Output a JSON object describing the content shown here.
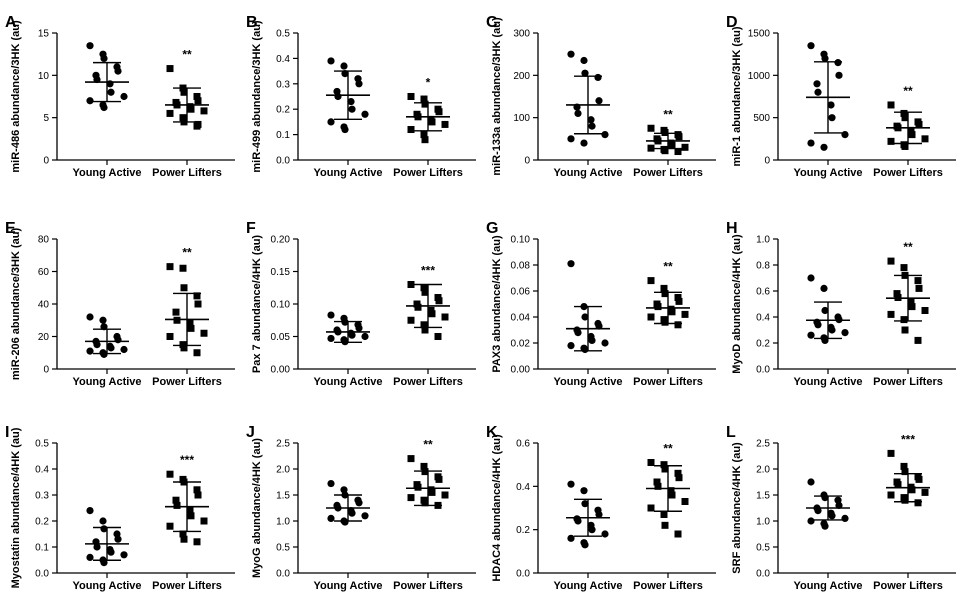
{
  "chart_data": [
    {
      "panel": "A",
      "type": "scatter",
      "ylabel": "miR-486 abundance/3HK (au)",
      "ylim": [
        0,
        15
      ],
      "yticks": [
        0,
        5,
        10,
        15
      ],
      "yticklabels": [
        "0",
        "5",
        "10",
        "15"
      ],
      "categories": [
        "Young Active",
        "Power Lifters"
      ],
      "series": [
        {
          "name": "Young Active",
          "marker": "circle",
          "values": [
            13.5,
            12.5,
            12,
            11,
            10.5,
            10,
            9.5,
            9,
            8,
            7.5,
            7,
            6.5,
            6.2
          ],
          "mean": 9.2,
          "sd": 2.3,
          "sig": ""
        },
        {
          "name": "Power Lifters",
          "marker": "square",
          "values": [
            10.8,
            8.5,
            8,
            7.5,
            7,
            6.8,
            6.5,
            6.3,
            6,
            5.8,
            5.5,
            5,
            4.5,
            4,
            4.2
          ],
          "mean": 6.5,
          "sd": 2.0,
          "sig": "**"
        }
      ]
    },
    {
      "panel": "B",
      "type": "scatter",
      "ylabel": "miR-499 abundance/3HK (au)",
      "ylim": [
        0,
        0.5
      ],
      "yticks": [
        0,
        0.1,
        0.2,
        0.3,
        0.4,
        0.5
      ],
      "yticklabels": [
        "0.0",
        "0.1",
        "0.2",
        "0.3",
        "0.4",
        "0.5"
      ],
      "categories": [
        "Young Active",
        "Power Lifters"
      ],
      "series": [
        {
          "name": "Young Active",
          "marker": "circle",
          "values": [
            0.39,
            0.37,
            0.34,
            0.32,
            0.3,
            0.27,
            0.25,
            0.23,
            0.2,
            0.18,
            0.15,
            0.13,
            0.12
          ],
          "mean": 0.255,
          "sd": 0.095,
          "sig": ""
        },
        {
          "name": "Power Lifters",
          "marker": "square",
          "values": [
            0.25,
            0.24,
            0.22,
            0.2,
            0.19,
            0.18,
            0.17,
            0.16,
            0.15,
            0.14,
            0.12,
            0.1,
            0.08
          ],
          "mean": 0.17,
          "sd": 0.055,
          "sig": "*"
        }
      ]
    },
    {
      "panel": "C",
      "type": "scatter",
      "ylabel": "miR-133a abundance/3HK (au)",
      "ylim": [
        0,
        300
      ],
      "yticks": [
        0,
        100,
        200,
        300
      ],
      "yticklabels": [
        "0",
        "100",
        "200",
        "300"
      ],
      "categories": [
        "Young Active",
        "Power Lifters"
      ],
      "series": [
        {
          "name": "Young Active",
          "marker": "circle",
          "values": [
            250,
            235,
            205,
            195,
            140,
            125,
            110,
            95,
            80,
            60,
            50,
            40
          ],
          "mean": 130,
          "sd": 68,
          "sig": ""
        },
        {
          "name": "Power Lifters",
          "marker": "square",
          "values": [
            75,
            70,
            65,
            60,
            55,
            50,
            45,
            40,
            35,
            30,
            28,
            25,
            22,
            20
          ],
          "mean": 45,
          "sd": 18,
          "sig": "**"
        }
      ]
    },
    {
      "panel": "D",
      "type": "scatter",
      "ylabel": "miR-1 abundance/3HK (au)",
      "ylim": [
        0,
        1500
      ],
      "yticks": [
        0,
        500,
        1000,
        1500
      ],
      "yticklabels": [
        "0",
        "500",
        "1000",
        "1500"
      ],
      "categories": [
        "Young Active",
        "Power Lifters"
      ],
      "series": [
        {
          "name": "Young Active",
          "marker": "circle",
          "values": [
            1350,
            1250,
            1200,
            1150,
            1000,
            900,
            800,
            650,
            500,
            300,
            200,
            150
          ],
          "mean": 740,
          "sd": 420,
          "sig": ""
        },
        {
          "name": "Power Lifters",
          "marker": "square",
          "values": [
            650,
            550,
            500,
            450,
            420,
            400,
            380,
            350,
            300,
            250,
            220,
            180,
            160
          ],
          "mean": 380,
          "sd": 185,
          "sig": "**"
        }
      ]
    },
    {
      "panel": "E",
      "type": "scatter",
      "ylabel": "miR-206 abundance/3HK (au)",
      "ylim": [
        0,
        80
      ],
      "yticks": [
        0,
        20,
        40,
        60,
        80
      ],
      "yticklabels": [
        "0",
        "20",
        "40",
        "60",
        "80"
      ],
      "categories": [
        "Young Active",
        "Power Lifters"
      ],
      "series": [
        {
          "name": "Young Active",
          "marker": "circle",
          "values": [
            32,
            30,
            26,
            20,
            18,
            17,
            15,
            14,
            13,
            12,
            11,
            10,
            9
          ],
          "mean": 17,
          "sd": 7.5,
          "sig": ""
        },
        {
          "name": "Power Lifters",
          "marker": "square",
          "values": [
            63,
            62,
            50,
            45,
            40,
            35,
            30,
            28,
            25,
            22,
            20,
            15,
            13,
            10
          ],
          "mean": 30.5,
          "sd": 16,
          "sig": "**"
        }
      ]
    },
    {
      "panel": "F",
      "type": "scatter",
      "ylabel": "Pax 7 abundance/4HK (au)",
      "ylim": [
        0,
        0.2
      ],
      "yticks": [
        0,
        0.05,
        0.1,
        0.15,
        0.2
      ],
      "yticklabels": [
        "0.00",
        "0.05",
        "0.10",
        "0.15",
        "0.20"
      ],
      "categories": [
        "Young Active",
        "Power Lifters"
      ],
      "series": [
        {
          "name": "Young Active",
          "marker": "circle",
          "values": [
            0.083,
            0.078,
            0.072,
            0.068,
            0.063,
            0.06,
            0.057,
            0.055,
            0.052,
            0.05,
            0.047,
            0.045,
            0.042
          ],
          "mean": 0.057,
          "sd": 0.016,
          "sig": ""
        },
        {
          "name": "Power Lifters",
          "marker": "square",
          "values": [
            0.13,
            0.125,
            0.118,
            0.11,
            0.105,
            0.1,
            0.095,
            0.09,
            0.085,
            0.08,
            0.075,
            0.068,
            0.06,
            0.05
          ],
          "mean": 0.097,
          "sd": 0.033,
          "sig": "***"
        }
      ]
    },
    {
      "panel": "G",
      "type": "scatter",
      "ylabel": "PAX3 abundance/4HK (au)",
      "ylim": [
        0,
        0.1
      ],
      "yticks": [
        0,
        0.02,
        0.04,
        0.06,
        0.08,
        0.1
      ],
      "yticklabels": [
        "0.00",
        "0.02",
        "0.04",
        "0.06",
        "0.08",
        "0.10"
      ],
      "categories": [
        "Young Active",
        "Power Lifters"
      ],
      "series": [
        {
          "name": "Young Active",
          "marker": "circle",
          "values": [
            0.081,
            0.048,
            0.04,
            0.035,
            0.033,
            0.03,
            0.028,
            0.025,
            0.022,
            0.02,
            0.018,
            0.016,
            0.015
          ],
          "mean": 0.031,
          "sd": 0.017,
          "sig": ""
        },
        {
          "name": "Power Lifters",
          "marker": "square",
          "values": [
            0.068,
            0.062,
            0.058,
            0.055,
            0.052,
            0.05,
            0.048,
            0.046,
            0.044,
            0.042,
            0.04,
            0.038,
            0.036,
            0.034
          ],
          "mean": 0.047,
          "sd": 0.012,
          "sig": "**"
        }
      ]
    },
    {
      "panel": "H",
      "type": "scatter",
      "ylabel": "MyoD abundance/4HK (au)",
      "ylim": [
        0,
        1.0
      ],
      "yticks": [
        0,
        0.2,
        0.4,
        0.6,
        0.8,
        1.0
      ],
      "yticklabels": [
        "0.0",
        "0.2",
        "0.4",
        "0.6",
        "0.8",
        "1.0"
      ],
      "categories": [
        "Young Active",
        "Power Lifters"
      ],
      "series": [
        {
          "name": "Young Active",
          "marker": "circle",
          "values": [
            0.7,
            0.62,
            0.45,
            0.4,
            0.38,
            0.36,
            0.34,
            0.32,
            0.3,
            0.28,
            0.26,
            0.24,
            0.22
          ],
          "mean": 0.375,
          "sd": 0.14,
          "sig": ""
        },
        {
          "name": "Power Lifters",
          "marker": "square",
          "values": [
            0.83,
            0.78,
            0.72,
            0.68,
            0.62,
            0.58,
            0.55,
            0.52,
            0.48,
            0.45,
            0.42,
            0.38,
            0.3,
            0.22
          ],
          "mean": 0.545,
          "sd": 0.175,
          "sig": "**"
        }
      ]
    },
    {
      "panel": "I",
      "type": "scatter",
      "ylabel": "Myostatin abundance/4HK (au)",
      "ylim": [
        0,
        0.5
      ],
      "yticks": [
        0,
        0.1,
        0.2,
        0.3,
        0.4,
        0.5
      ],
      "yticklabels": [
        "0.0",
        "0.1",
        "0.2",
        "0.3",
        "0.4",
        "0.5"
      ],
      "categories": [
        "Young Active",
        "Power Lifters"
      ],
      "series": [
        {
          "name": "Young Active",
          "marker": "circle",
          "values": [
            0.24,
            0.2,
            0.17,
            0.15,
            0.13,
            0.12,
            0.1,
            0.09,
            0.08,
            0.07,
            0.06,
            0.05,
            0.04
          ],
          "mean": 0.112,
          "sd": 0.063,
          "sig": ""
        },
        {
          "name": "Power Lifters",
          "marker": "square",
          "values": [
            0.38,
            0.36,
            0.35,
            0.32,
            0.3,
            0.28,
            0.26,
            0.24,
            0.22,
            0.2,
            0.18,
            0.15,
            0.13,
            0.12
          ],
          "mean": 0.255,
          "sd": 0.095,
          "sig": "***"
        }
      ]
    },
    {
      "panel": "J",
      "type": "scatter",
      "ylabel": "MyoG abundance/4HK (au)",
      "ylim": [
        0,
        2.5
      ],
      "yticks": [
        0,
        0.5,
        1.0,
        1.5,
        2.0,
        2.5
      ],
      "yticklabels": [
        "0.0",
        "0.5",
        "1.0",
        "1.5",
        "2.0",
        "2.5"
      ],
      "categories": [
        "Young Active",
        "Power Lifters"
      ],
      "series": [
        {
          "name": "Young Active",
          "marker": "circle",
          "values": [
            1.72,
            1.6,
            1.5,
            1.4,
            1.35,
            1.3,
            1.25,
            1.2,
            1.15,
            1.1,
            1.05,
            1.0,
            0.98
          ],
          "mean": 1.25,
          "sd": 0.25,
          "sig": ""
        },
        {
          "name": "Power Lifters",
          "marker": "square",
          "values": [
            2.2,
            2.05,
            1.95,
            1.85,
            1.8,
            1.7,
            1.65,
            1.6,
            1.55,
            1.5,
            1.45,
            1.4,
            1.35,
            1.3
          ],
          "mean": 1.63,
          "sd": 0.33,
          "sig": "**"
        }
      ]
    },
    {
      "panel": "K",
      "type": "scatter",
      "ylabel": "HDAC4 abundance/4HK (au)",
      "ylim": [
        0,
        0.6
      ],
      "yticks": [
        0,
        0.2,
        0.4,
        0.6
      ],
      "yticklabels": [
        "0.0",
        "0.2",
        "0.4",
        "0.6"
      ],
      "categories": [
        "Young Active",
        "Power Lifters"
      ],
      "series": [
        {
          "name": "Young Active",
          "marker": "circle",
          "values": [
            0.41,
            0.38,
            0.32,
            0.29,
            0.27,
            0.25,
            0.24,
            0.22,
            0.2,
            0.18,
            0.16,
            0.14,
            0.13
          ],
          "mean": 0.255,
          "sd": 0.085,
          "sig": ""
        },
        {
          "name": "Power Lifters",
          "marker": "square",
          "values": [
            0.51,
            0.5,
            0.48,
            0.46,
            0.44,
            0.42,
            0.4,
            0.38,
            0.36,
            0.33,
            0.3,
            0.27,
            0.22,
            0.18
          ],
          "mean": 0.39,
          "sd": 0.105,
          "sig": "**"
        }
      ]
    },
    {
      "panel": "L",
      "type": "scatter",
      "ylabel": "SRF abundance/4HK (au)",
      "ylim": [
        0,
        2.5
      ],
      "yticks": [
        0,
        0.5,
        1.0,
        1.5,
        2.0,
        2.5
      ],
      "yticklabels": [
        "0.0",
        "0.5",
        "1.0",
        "1.5",
        "2.0",
        "2.5"
      ],
      "categories": [
        "Young Active",
        "Power Lifters"
      ],
      "series": [
        {
          "name": "Young Active",
          "marker": "circle",
          "values": [
            1.75,
            1.5,
            1.45,
            1.4,
            1.3,
            1.25,
            1.2,
            1.15,
            1.1,
            1.05,
            1.0,
            0.95,
            0.9
          ],
          "mean": 1.25,
          "sd": 0.23,
          "sig": ""
        },
        {
          "name": "Power Lifters",
          "marker": "square",
          "values": [
            2.3,
            2.05,
            1.95,
            1.85,
            1.8,
            1.75,
            1.7,
            1.65,
            1.6,
            1.55,
            1.5,
            1.45,
            1.4,
            1.35
          ],
          "mean": 1.64,
          "sd": 0.27,
          "sig": "***"
        }
      ]
    }
  ]
}
